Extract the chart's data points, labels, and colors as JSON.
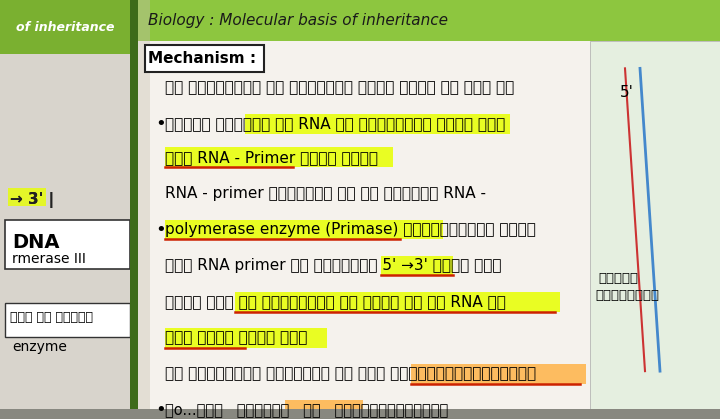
{
  "fig_w": 7.2,
  "fig_h": 4.19,
  "dpi": 100,
  "page_bg": "#f0ede8",
  "left_page_bg": "#e8e5e0",
  "main_bg": "#f5f2ed",
  "title_green": "#8dc63f",
  "title_text": "Biology : Molecular basis of inheritance",
  "mechanism_label": "Mechanism :",
  "left_tab_text": "of inheritance",
  "highlight_yellow": "#e8ff00",
  "highlight_orange": "#ffb347",
  "underline_red": "#cc2200",
  "text_dark": "#1a1a1a",
  "spine_color": "#5a7a30",
  "right_panel_bg": "#e5efe0",
  "right_line_blue": "#4488cc",
  "right_line_red": "#cc3333"
}
